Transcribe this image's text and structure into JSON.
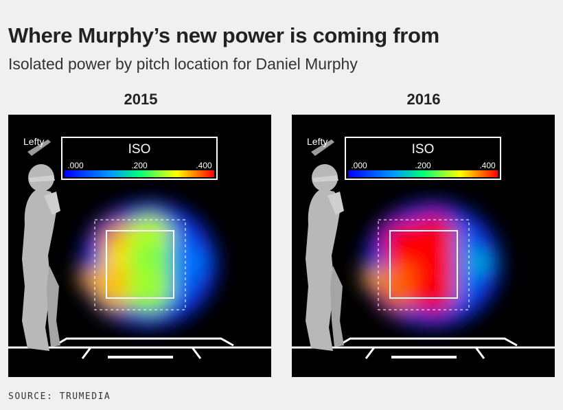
{
  "header": {
    "title": "Where Murphy’s new power is coming from",
    "subtitle": "Isolated power by pitch location for Daniel Murphy"
  },
  "source": "SOURCE: TRUMEDIA",
  "chart_data": [
    {
      "type": "heatmap",
      "title": "2015",
      "batter_label": "Lefty",
      "legend": {
        "title": "ISO",
        "ticks": [
          ".000",
          ".200",
          ".400"
        ],
        "range": [
          0,
          0.4
        ],
        "placement": "top-right"
      },
      "hot_spots": [
        {
          "zone": "upper-left",
          "iso": 0.33
        },
        {
          "zone": "upper-middle",
          "iso": 0.26
        },
        {
          "zone": "middle-left",
          "iso": 0.29
        },
        {
          "zone": "middle-center",
          "iso": 0.24
        },
        {
          "zone": "lower-left",
          "iso": 0.31
        },
        {
          "zone": "lower-middle",
          "iso": 0.25
        },
        {
          "zone": "outside-left",
          "iso": 0.32
        },
        {
          "zone": "outside-right",
          "iso": 0.1
        }
      ]
    },
    {
      "type": "heatmap",
      "title": "2016",
      "batter_label": "Lefty",
      "legend": {
        "title": "ISO",
        "ticks": [
          ".000",
          ".200",
          ".400"
        ],
        "range": [
          0,
          0.4
        ],
        "placement": "top-right"
      },
      "hot_spots": [
        {
          "zone": "upper-left",
          "iso": 0.42
        },
        {
          "zone": "upper-middle",
          "iso": 0.42
        },
        {
          "zone": "middle-left",
          "iso": 0.42
        },
        {
          "zone": "middle-center",
          "iso": 0.41
        },
        {
          "zone": "lower-left",
          "iso": 0.35
        },
        {
          "zone": "lower-middle",
          "iso": 0.4
        },
        {
          "zone": "outside-left",
          "iso": 0.32
        },
        {
          "zone": "outside-right",
          "iso": 0.15
        }
      ]
    }
  ],
  "colors": {
    "background": "#f0f0f0",
    "panel": "#000000",
    "scale": [
      "#0000ff",
      "#00a0ff",
      "#00ff80",
      "#ffff00",
      "#ff0000"
    ]
  }
}
